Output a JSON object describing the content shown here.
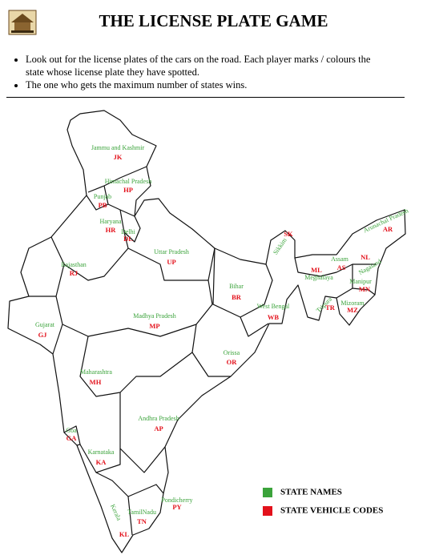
{
  "header": {
    "title": "THE LICENSE PLATE GAME"
  },
  "instructions": [
    "Look out for the license plates of the cars on the road. Each player marks / colours the state whose license plate they have spotted.",
    "The one who gets the maximum number of states wins."
  ],
  "states": [
    {
      "name": "Jammu and Kashmir",
      "code": "JK"
    },
    {
      "name": "Himachal Pradesh",
      "code": "HP"
    },
    {
      "name": "Punjab",
      "code": "PB"
    },
    {
      "name": "Haryana",
      "code": "HR"
    },
    {
      "name": "Delhi",
      "code": "DL"
    },
    {
      "name": "Uttar Pradesh",
      "code": "UP"
    },
    {
      "name": "Rajasthan",
      "code": "RJ"
    },
    {
      "name": "Gujarat",
      "code": "GJ"
    },
    {
      "name": "Madhya Pradesh",
      "code": "MP"
    },
    {
      "name": "Bihar",
      "code": "BR"
    },
    {
      "name": "West Bengal",
      "code": "WB"
    },
    {
      "name": "Sikkim",
      "code": "SK"
    },
    {
      "name": "Assam",
      "code": "AS"
    },
    {
      "name": "Meghalaya",
      "code": "ML"
    },
    {
      "name": "Arunachal Pradesh",
      "code": "AR"
    },
    {
      "name": "Nagaland",
      "code": "NL"
    },
    {
      "name": "Manipur",
      "code": "MN"
    },
    {
      "name": "Mizoram",
      "code": "MZ"
    },
    {
      "name": "Tripura",
      "code": "TR"
    },
    {
      "name": "Orissa",
      "code": "OR"
    },
    {
      "name": "Maharashtra",
      "code": "MH"
    },
    {
      "name": "Andhra Pradesh",
      "code": "AP"
    },
    {
      "name": "Goa",
      "code": "GA"
    },
    {
      "name": "Karnataka",
      "code": "KA"
    },
    {
      "name": "Kerala",
      "code": "KL"
    },
    {
      "name": "TamilNadu",
      "code": "TN"
    },
    {
      "name": "Pondicherry",
      "code": "PY"
    }
  ],
  "legend": [
    {
      "label": "STATE NAMES",
      "color": "#3ba33b"
    },
    {
      "label": "STATE VEHICLE CODES",
      "color": "#e3111b"
    }
  ]
}
